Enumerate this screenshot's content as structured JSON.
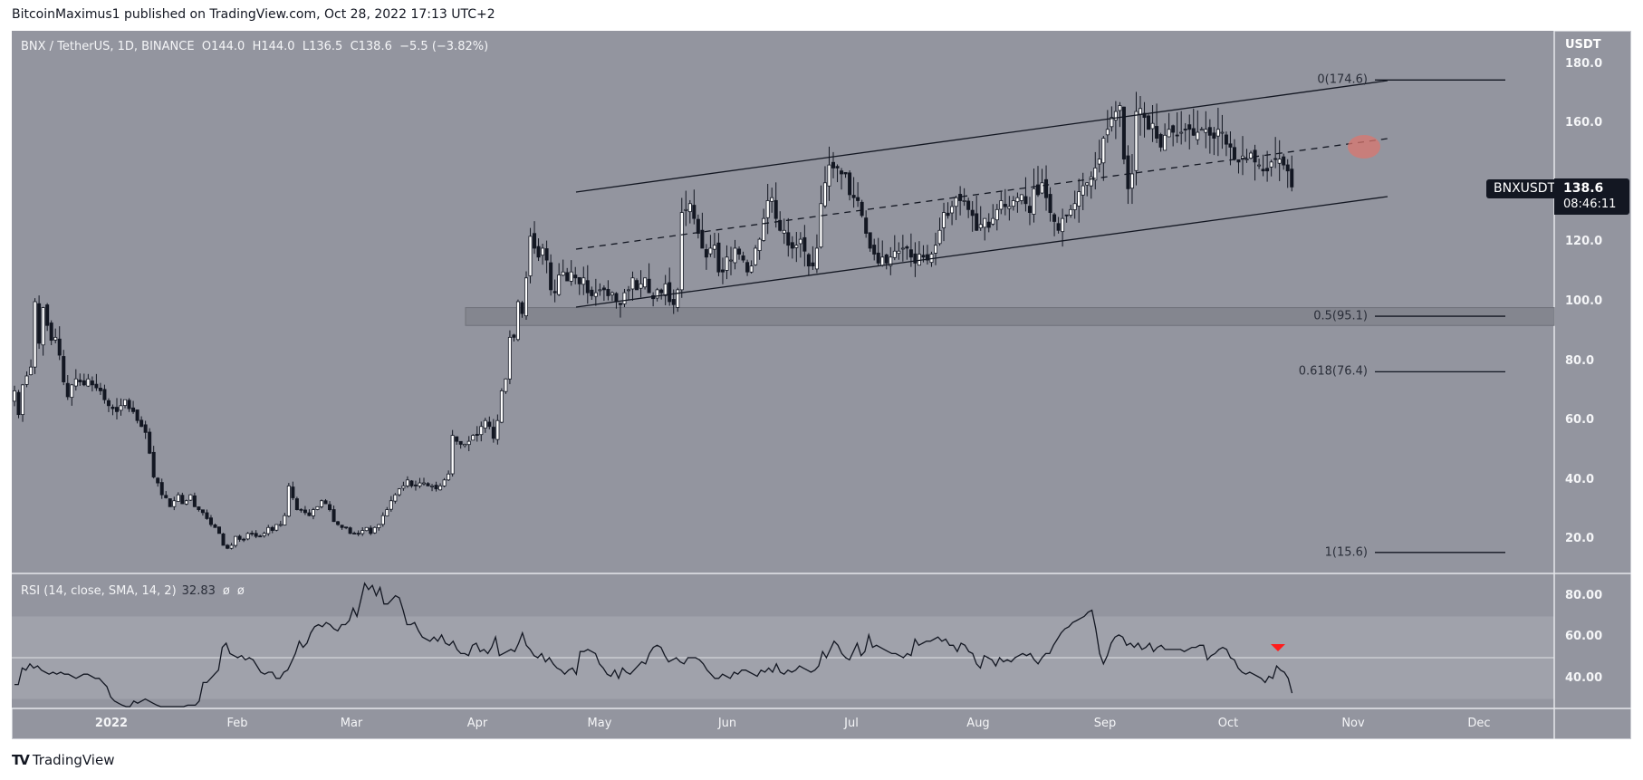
{
  "header": {
    "published_by": "BitcoinMaximus1 published on TradingView.com, Oct 28, 2022 17:13 UTC+2"
  },
  "legend": {
    "symbol": "BNX / TetherUS, 1D, BINANCE",
    "open_label": "O",
    "open": "144.0",
    "high_label": "H",
    "high": "144.0",
    "low_label": "L",
    "low": "136.5",
    "close_label": "C",
    "close": "138.6",
    "change": "−5.5 (−3.82%)"
  },
  "price_axis": {
    "unit": "USDT",
    "ticks": [
      "180.0",
      "160.0",
      "120.0",
      "100.0",
      "80.0",
      "60.0",
      "40.0",
      "20.0"
    ],
    "tick_values": [
      180,
      160,
      120,
      100,
      80,
      60,
      40,
      20
    ]
  },
  "price_tag": {
    "symbol": "BNXUSDT",
    "price": "138.6",
    "countdown": "08:46:11"
  },
  "rsi": {
    "label": "RSI (14, close, SMA, 14, 2)",
    "value": "32.83",
    "na1": "ø",
    "na2": "ø",
    "ticks": [
      "80.00",
      "60.00",
      "40.00"
    ],
    "upper_band": 70,
    "lower_band": 30,
    "mid": 50
  },
  "time_axis": {
    "labels": [
      "2022",
      "Feb",
      "Mar",
      "Apr",
      "May",
      "Jun",
      "Jul",
      "Aug",
      "Sep",
      "Oct",
      "Nov",
      "Dec"
    ]
  },
  "fibonacci": [
    {
      "label": "0(174.6)",
      "level": 0,
      "price": 174.6
    },
    {
      "label": "0.5(95.1)",
      "level": 0.5,
      "price": 95.1
    },
    {
      "label": "0.618(76.4)",
      "level": 0.618,
      "price": 76.4
    },
    {
      "label": "1(15.6)",
      "level": 1,
      "price": 15.6
    }
  ],
  "annotations": {
    "support_zone": {
      "from": 92,
      "to": 98,
      "color": "#7f818a"
    },
    "channel": {
      "type": "ascending parallel channel",
      "color": "#131722"
    },
    "breakdown_marker_color": "#d9776f",
    "rsi_bearish_marker_color": "#ff1c1c"
  },
  "footer": {
    "brand": "TradingView",
    "logo": "TV"
  },
  "colors": {
    "background": "#93959f",
    "up_candle": "#ffffff",
    "down_candle": "#131722",
    "rsi_line": "#131722",
    "rsi_band": "#a0a2ab"
  },
  "chart_data": {
    "type": "candlestick",
    "title": "BNX / TetherUS, 1D, BINANCE",
    "xlabel": "",
    "ylabel": "USDT",
    "ylim": [
      0,
      190
    ],
    "x_range": [
      "2021-12-10",
      "2022-12-20"
    ],
    "grid": false,
    "last_candle": {
      "date": "2022-10-28",
      "open": 144.0,
      "high": 144.0,
      "low": 136.5,
      "close": 138.6,
      "change": -5.5,
      "change_pct": -3.82
    },
    "start_day_offset": 0,
    "days_per_label_reference": {
      "2022-01-01": 123,
      "2022-12-01": 1633
    },
    "closes": [
      70,
      62,
      72,
      75,
      78,
      100,
      86,
      98,
      92,
      87,
      88,
      82,
      73,
      68,
      72,
      74,
      73,
      72,
      74,
      72,
      71,
      70,
      67,
      65,
      64,
      63,
      65,
      67,
      64,
      63,
      60,
      58,
      56,
      49,
      41,
      39,
      35,
      34,
      31,
      33,
      35,
      32,
      33,
      35,
      31,
      30,
      29,
      27,
      25,
      24,
      22,
      18,
      17,
      18,
      21,
      20,
      20,
      22,
      22,
      21,
      21,
      22,
      24,
      23,
      25,
      25,
      28,
      38,
      34,
      30,
      30,
      29,
      28,
      30,
      31,
      33,
      32,
      30,
      26,
      25,
      24,
      24,
      22,
      22,
      22,
      23,
      24,
      22,
      24,
      25,
      28,
      30,
      33,
      35,
      37,
      38,
      40,
      38,
      38,
      39,
      39,
      38,
      38,
      37,
      38,
      40,
      42,
      55,
      53,
      52,
      52,
      53,
      55,
      55,
      58,
      60,
      58,
      54,
      60,
      70,
      74,
      88,
      88,
      100,
      96,
      108,
      122,
      118,
      115,
      118,
      114,
      104,
      103,
      109,
      110,
      107,
      110,
      108,
      106,
      108,
      103,
      102,
      103,
      104,
      104,
      102,
      103,
      100,
      99,
      103,
      104,
      108,
      104,
      106,
      108,
      103,
      101,
      104,
      103,
      106,
      100,
      99,
      104,
      130,
      131,
      133,
      128,
      123,
      118,
      115,
      118,
      119,
      110,
      110,
      115,
      114,
      118,
      116,
      114,
      110,
      112,
      118,
      121,
      128,
      134,
      135,
      128,
      124,
      124,
      119,
      118,
      119,
      121,
      117,
      112,
      112,
      118,
      133,
      140,
      146,
      145,
      145,
      143,
      143,
      136,
      135,
      134,
      129,
      123,
      118,
      116,
      113,
      115,
      113,
      115,
      117,
      117,
      118,
      118,
      115,
      113,
      116,
      115,
      114,
      116,
      119,
      124,
      130,
      129,
      132,
      135,
      134,
      134,
      131,
      129,
      124,
      126,
      128,
      125,
      128,
      131,
      134,
      132,
      132,
      134,
      135,
      136,
      133,
      130,
      138,
      136,
      140,
      135,
      130,
      127,
      124,
      128,
      129,
      131,
      133,
      137,
      139,
      140,
      142,
      145,
      148,
      155,
      158,
      162,
      164,
      166,
      148,
      138,
      143,
      164,
      165,
      162,
      158,
      160,
      155,
      152,
      156,
      158,
      157,
      156,
      157,
      158,
      158,
      156,
      157,
      158,
      158,
      156,
      155,
      158,
      157,
      153,
      152,
      148,
      147,
      149,
      148,
      150,
      147,
      146,
      144,
      144,
      147,
      148,
      148,
      146,
      144,
      138.6
    ],
    "rsi_values": [
      37,
      37,
      45,
      44,
      47,
      45,
      46,
      44,
      43,
      42,
      43,
      42,
      43,
      42,
      42,
      41,
      40,
      41,
      42,
      42,
      41,
      40,
      40,
      38,
      36,
      31,
      29,
      28,
      27,
      26,
      26,
      29,
      28,
      29,
      30,
      29,
      28,
      27,
      26,
      25,
      23,
      24,
      23,
      24,
      26,
      27,
      27,
      27,
      29,
      38,
      38,
      40,
      42,
      44,
      55,
      57,
      52,
      51,
      50,
      51,
      49,
      50,
      49,
      46,
      43,
      42,
      43,
      43,
      40,
      40,
      43,
      44,
      48,
      52,
      58,
      55,
      57,
      62,
      65,
      66,
      65,
      67,
      66,
      64,
      63,
      66,
      66,
      68,
      74,
      70,
      78,
      86,
      83,
      85,
      80,
      84,
      76,
      76,
      78,
      80,
      79,
      73,
      66,
      66,
      67,
      63,
      60,
      59,
      58,
      60,
      58,
      61,
      57,
      56,
      58,
      54,
      52,
      52,
      51,
      56,
      57,
      53,
      54,
      52,
      55,
      60,
      51,
      52,
      53,
      54,
      53,
      57,
      62,
      56,
      54,
      51,
      50,
      52,
      48,
      50,
      47,
      45,
      44,
      42,
      44,
      45,
      42,
      53,
      53,
      54,
      53,
      52,
      47,
      45,
      42,
      41,
      44,
      40,
      45,
      43,
      42,
      44,
      46,
      48,
      47,
      52,
      55,
      56,
      55,
      51,
      48,
      49,
      50,
      48,
      47,
      50,
      50,
      50,
      49,
      47,
      44,
      42,
      40,
      40,
      42,
      41,
      40,
      43,
      42,
      44,
      44,
      43,
      42,
      41,
      44,
      43,
      45,
      43,
      47,
      43,
      42,
      44,
      43,
      44,
      46,
      45,
      44,
      43,
      44,
      46,
      53,
      50,
      54,
      58,
      56,
      52,
      50,
      49,
      53,
      57,
      51,
      53,
      61,
      55,
      56,
      55,
      54,
      53,
      52,
      52,
      51,
      50,
      52,
      51,
      59,
      56,
      57,
      58,
      58,
      59,
      60,
      58,
      59,
      56,
      56,
      53,
      57,
      56,
      53,
      52,
      47,
      45,
      51,
      50,
      49,
      46,
      50,
      48,
      49,
      48,
      50,
      51,
      52,
      51,
      52,
      49,
      47,
      50,
      52,
      52,
      56,
      59,
      62,
      64,
      65,
      67,
      68,
      69,
      70,
      72,
      73,
      64,
      52,
      47,
      51,
      57,
      60,
      61,
      60,
      56,
      57,
      55,
      57,
      54,
      55,
      57,
      53,
      55,
      56,
      54,
      54,
      54,
      54,
      54,
      53,
      54,
      55,
      55,
      56,
      56,
      49,
      51,
      52,
      54,
      55,
      54,
      50,
      49,
      45,
      43,
      42,
      43,
      42,
      41,
      40,
      38,
      41,
      40,
      46,
      44,
      43,
      40,
      32.83
    ]
  }
}
